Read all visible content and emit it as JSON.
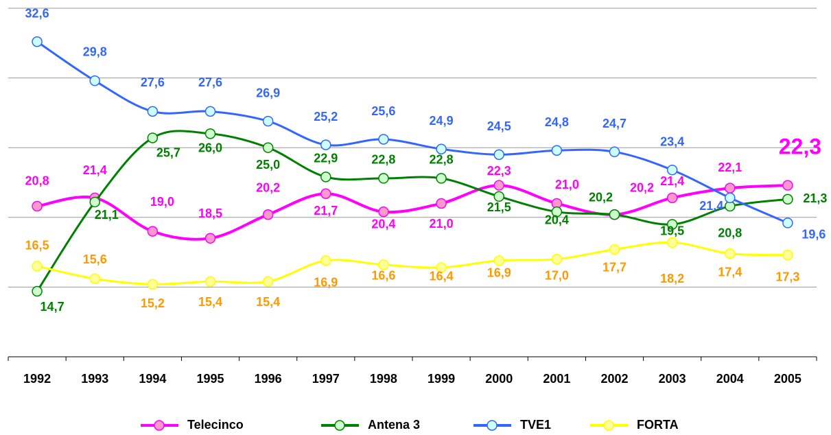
{
  "chart_data": {
    "type": "line",
    "categories": [
      "1992",
      "1993",
      "1994",
      "1995",
      "1996",
      "1997",
      "1998",
      "1999",
      "2000",
      "2001",
      "2002",
      "2003",
      "2004",
      "2005"
    ],
    "ylim": [
      10,
      35
    ],
    "yticks": [
      10,
      15,
      20,
      25,
      30,
      35
    ],
    "grid": true,
    "legend": "bottom",
    "series": [
      {
        "name": "Telecinco",
        "color": "#ff00ff",
        "marker_color": "#ff99cc",
        "label_color": "#ff00ff",
        "values": [
          20.8,
          21.4,
          19.0,
          18.5,
          20.2,
          21.7,
          20.4,
          21.0,
          22.3,
          21.0,
          20.2,
          21.4,
          22.1,
          22.3
        ],
        "value_labels": [
          "20,8",
          "21,4",
          "19,0",
          "18,5",
          "20,2",
          "21,7",
          "20,4",
          "21,0",
          "22,3",
          "21,0",
          "20,2",
          "21,4",
          "22,1",
          "22,3"
        ]
      },
      {
        "name": "Antena 3",
        "color": "#008000",
        "marker_color": "#ccffcc",
        "label_color": "#008000",
        "values": [
          14.7,
          21.1,
          25.7,
          26.0,
          25.0,
          22.9,
          22.8,
          22.8,
          21.5,
          20.4,
          20.2,
          19.5,
          20.8,
          21.3
        ],
        "value_labels": [
          "14,7",
          "21,1",
          "25,7",
          "26,0",
          "25,0",
          "22,9",
          "22,8",
          "22,8",
          "21,5",
          "20,4",
          "20,2",
          "19,5",
          "20,8",
          "21,3"
        ]
      },
      {
        "name": "TVE1",
        "color": "#3366ff",
        "marker_color": "#ccffff",
        "label_color": "#3366ff",
        "values": [
          32.6,
          29.8,
          27.6,
          27.6,
          26.9,
          25.2,
          25.6,
          24.9,
          24.5,
          24.8,
          24.7,
          23.4,
          21.4,
          19.6
        ],
        "value_labels": [
          "32,6",
          "29,8",
          "27,6",
          "27,6",
          "26,9",
          "25,2",
          "25,6",
          "24,9",
          "24,5",
          "24,8",
          "24,7",
          "23,4",
          "21,4",
          "19,6"
        ]
      },
      {
        "name": "FORTA",
        "color": "#ffff00",
        "marker_color": "#ffff99",
        "label_color": "#ff9900",
        "values": [
          16.5,
          15.6,
          15.2,
          15.4,
          15.4,
          16.9,
          16.6,
          16.4,
          16.9,
          17.0,
          17.7,
          18.2,
          17.4,
          17.3
        ],
        "value_labels": [
          "16,5",
          "15,6",
          "15,2",
          "15,4",
          "15,4",
          "16,9",
          "16,6",
          "16,4",
          "16,9",
          "17,0",
          "17,7",
          "18,2",
          "17,4",
          "17,3"
        ]
      }
    ]
  }
}
